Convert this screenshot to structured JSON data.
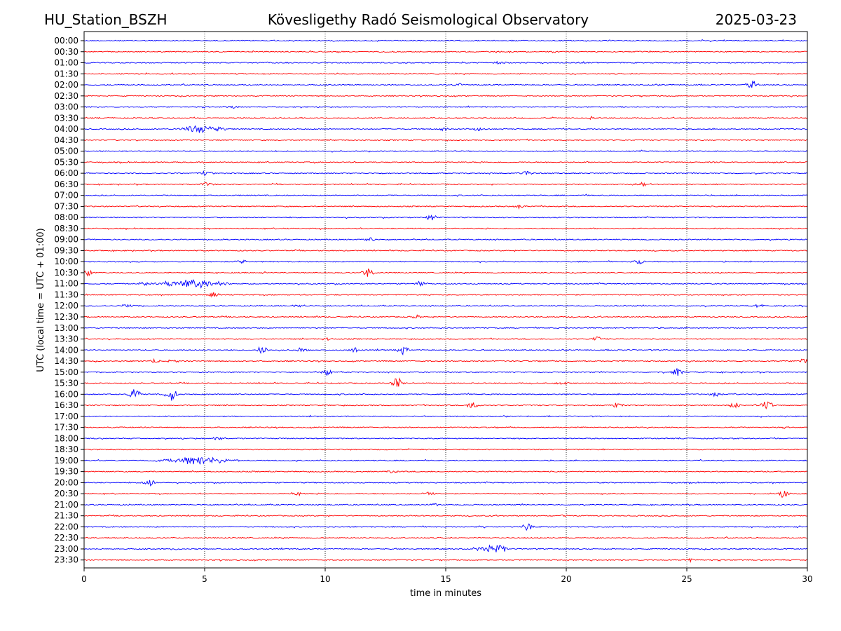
{
  "header": {
    "station": "HU_Station_BSZH",
    "observatory": "Kövesligethy Radó Seismological Observatory",
    "date": "2025-03-23"
  },
  "chart_data": {
    "type": "line",
    "title": "Kövesligethy Radó Seismological Observatory",
    "xlabel": "time in minutes",
    "ylabel": "UTC (local time = UTC + 01:00)",
    "xlim": [
      0,
      30
    ],
    "x_ticks": [
      0,
      5,
      10,
      15,
      20,
      25,
      30
    ],
    "x_tick_labels": [
      "0",
      "5",
      "10",
      "15",
      "20",
      "25",
      "30"
    ],
    "grid": "vertical dotted at x ticks",
    "colors": {
      "even_rows": "#0000ff",
      "odd_rows": "#ff0000"
    },
    "rows": [
      {
        "label": "00:00",
        "events": []
      },
      {
        "label": "00:30",
        "events": []
      },
      {
        "label": "01:00",
        "events": [
          {
            "x": 17.3,
            "amp": 0.3
          }
        ]
      },
      {
        "label": "01:30",
        "events": []
      },
      {
        "label": "02:00",
        "events": [
          {
            "x": 27.7,
            "amp": 0.6
          },
          {
            "x": 15.6,
            "amp": 0.25
          }
        ]
      },
      {
        "label": "02:30",
        "events": []
      },
      {
        "label": "03:00",
        "events": [
          {
            "x": 6.1,
            "amp": 0.2
          }
        ]
      },
      {
        "label": "03:30",
        "events": [
          {
            "x": 21.0,
            "amp": 0.2
          }
        ]
      },
      {
        "label": "04:00",
        "events": [
          {
            "x": 4.9,
            "amp": 0.6,
            "dur": 1.2
          },
          {
            "x": 14.9,
            "amp": 0.25
          },
          {
            "x": 16.4,
            "amp": 0.3
          }
        ]
      },
      {
        "label": "04:30",
        "events": []
      },
      {
        "label": "05:00",
        "events": []
      },
      {
        "label": "05:30",
        "events": []
      },
      {
        "label": "06:00",
        "events": [
          {
            "x": 5.1,
            "amp": 0.5
          },
          {
            "x": 18.4,
            "amp": 0.5
          }
        ]
      },
      {
        "label": "06:30",
        "events": [
          {
            "x": 5.1,
            "amp": 0.4
          },
          {
            "x": 23.1,
            "amp": 0.3
          }
        ]
      },
      {
        "label": "07:00",
        "events": []
      },
      {
        "label": "07:30",
        "events": [
          {
            "x": 18.1,
            "amp": 0.3
          }
        ]
      },
      {
        "label": "08:00",
        "events": [
          {
            "x": 14.4,
            "amp": 0.5
          }
        ]
      },
      {
        "label": "08:30",
        "events": []
      },
      {
        "label": "09:00",
        "events": [
          {
            "x": 11.8,
            "amp": 0.4
          }
        ]
      },
      {
        "label": "09:30",
        "events": []
      },
      {
        "label": "10:00",
        "events": [
          {
            "x": 6.5,
            "amp": 0.3
          },
          {
            "x": 23.0,
            "amp": 0.4
          }
        ]
      },
      {
        "label": "10:30",
        "events": [
          {
            "x": 0.1,
            "amp": 0.6
          },
          {
            "x": 11.8,
            "amp": 0.7
          }
        ]
      },
      {
        "label": "11:00",
        "events": [
          {
            "x": 4.6,
            "amp": 0.6,
            "dur": 2.0
          },
          {
            "x": 2.5,
            "amp": 0.4
          },
          {
            "x": 14.0,
            "amp": 0.4
          }
        ]
      },
      {
        "label": "11:30",
        "events": [
          {
            "x": 5.4,
            "amp": 0.4
          }
        ]
      },
      {
        "label": "12:00",
        "events": [
          {
            "x": 1.8,
            "amp": 0.3
          },
          {
            "x": 8.9,
            "amp": 0.3
          },
          {
            "x": 28.0,
            "amp": 0.3
          }
        ]
      },
      {
        "label": "12:30",
        "events": [
          {
            "x": 13.8,
            "amp": 0.3
          }
        ]
      },
      {
        "label": "13:00",
        "events": []
      },
      {
        "label": "13:30",
        "events": [
          {
            "x": 10.1,
            "amp": 0.3
          },
          {
            "x": 21.3,
            "amp": 0.3
          }
        ]
      },
      {
        "label": "14:00",
        "events": [
          {
            "x": 7.4,
            "amp": 0.6
          },
          {
            "x": 13.2,
            "amp": 0.6
          },
          {
            "x": 11.2,
            "amp": 0.4
          },
          {
            "x": 9.0,
            "amp": 0.4
          }
        ]
      },
      {
        "label": "14:30",
        "events": [
          {
            "x": 2.9,
            "amp": 0.4
          },
          {
            "x": 3.7,
            "amp": 0.3
          },
          {
            "x": 29.9,
            "amp": 0.4
          }
        ]
      },
      {
        "label": "15:00",
        "events": [
          {
            "x": 10.1,
            "amp": 0.5
          },
          {
            "x": 24.6,
            "amp": 0.5
          }
        ]
      },
      {
        "label": "15:30",
        "events": [
          {
            "x": 13.0,
            "amp": 0.9
          },
          {
            "x": 19.8,
            "amp": 0.3
          }
        ]
      },
      {
        "label": "16:00",
        "events": [
          {
            "x": 2.1,
            "amp": 1.0
          },
          {
            "x": 3.6,
            "amp": 1.0
          },
          {
            "x": 26.2,
            "amp": 0.3
          }
        ]
      },
      {
        "label": "16:30",
        "events": [
          {
            "x": 16.1,
            "amp": 0.6
          },
          {
            "x": 28.3,
            "amp": 0.8
          },
          {
            "x": 22.1,
            "amp": 0.4
          },
          {
            "x": 27.0,
            "amp": 0.4
          }
        ]
      },
      {
        "label": "17:00",
        "events": []
      },
      {
        "label": "17:30",
        "events": []
      },
      {
        "label": "18:00",
        "events": [
          {
            "x": 5.6,
            "amp": 0.4
          }
        ]
      },
      {
        "label": "18:30",
        "events": []
      },
      {
        "label": "19:00",
        "events": [
          {
            "x": 4.7,
            "amp": 0.6,
            "dur": 2.0
          }
        ]
      },
      {
        "label": "19:30",
        "events": [
          {
            "x": 12.8,
            "amp": 0.3
          }
        ]
      },
      {
        "label": "20:00",
        "events": [
          {
            "x": 2.7,
            "amp": 0.5
          }
        ]
      },
      {
        "label": "20:30",
        "events": [
          {
            "x": 8.8,
            "amp": 0.3
          },
          {
            "x": 14.3,
            "amp": 0.3
          },
          {
            "x": 29.0,
            "amp": 0.6
          }
        ]
      },
      {
        "label": "21:00",
        "events": [
          {
            "x": 14.5,
            "amp": 0.2
          }
        ]
      },
      {
        "label": "21:30",
        "events": [
          {
            "x": 19.9,
            "amp": 0.2
          }
        ]
      },
      {
        "label": "22:00",
        "events": [
          {
            "x": 18.4,
            "amp": 0.6
          },
          {
            "x": 16.5,
            "amp": 0.2
          }
        ]
      },
      {
        "label": "22:30",
        "events": []
      },
      {
        "label": "23:00",
        "events": [
          {
            "x": 16.8,
            "amp": 0.5,
            "dur": 0.8
          },
          {
            "x": 17.3,
            "amp": 0.6
          },
          {
            "x": 3.8,
            "amp": 0.2
          }
        ]
      },
      {
        "label": "23:30",
        "events": [
          {
            "x": 25.1,
            "amp": 0.3
          }
        ]
      }
    ]
  }
}
